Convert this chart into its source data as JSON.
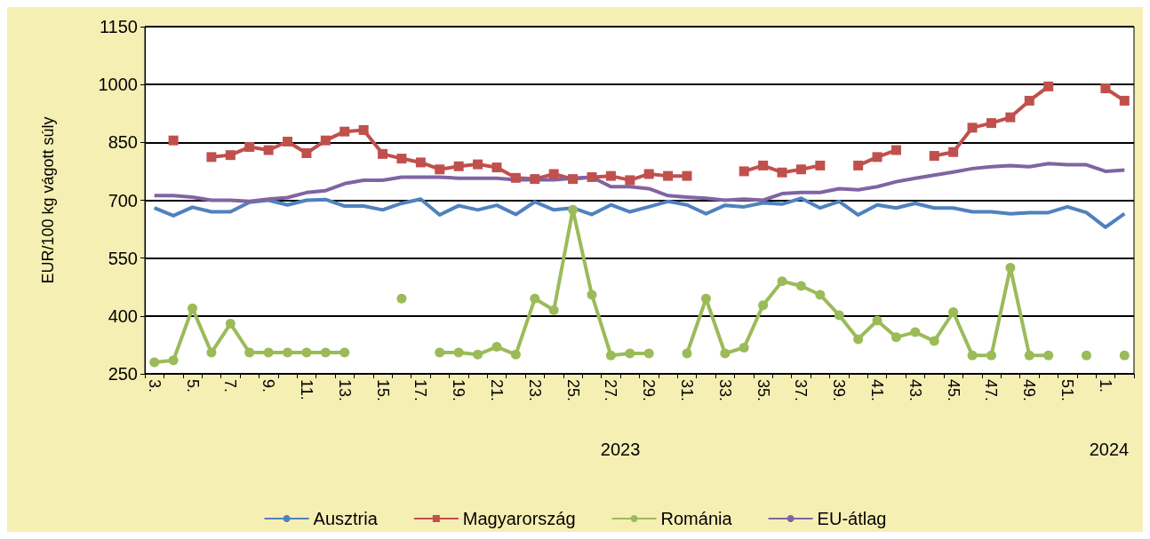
{
  "chart_data": {
    "type": "line",
    "ylabel": "EUR/100 kg vágott súly",
    "categories": [
      "3.",
      null,
      "5.",
      null,
      "7.",
      null,
      "9.",
      null,
      "11.",
      null,
      "13.",
      null,
      "15.",
      null,
      "17.",
      null,
      "19.",
      null,
      "21.",
      null,
      "23.",
      null,
      "25.",
      null,
      "27.",
      null,
      "29.",
      null,
      "31.",
      null,
      "33.",
      null,
      "35.",
      null,
      "37.",
      null,
      "39.",
      null,
      "41.",
      null,
      "43.",
      null,
      "45.",
      null,
      "47.",
      null,
      "49.",
      null,
      "51.",
      null,
      "1.",
      null
    ],
    "annotations": [
      "2023",
      "2024"
    ],
    "ylim": [
      250,
      1150
    ],
    "yticks": [
      250,
      400,
      550,
      700,
      850,
      1000,
      1150
    ],
    "grid": "y",
    "legend": "bottom",
    "series": [
      {
        "name": "Ausztria",
        "color": "#4f81bd",
        "marker": "none",
        "values": [
          680,
          660,
          682,
          670,
          670,
          695,
          700,
          688,
          700,
          702,
          685,
          685,
          675,
          692,
          703,
          662,
          686,
          675,
          687,
          663,
          696,
          675,
          680,
          663,
          688,
          670,
          683,
          697,
          688,
          665,
          687,
          683,
          693,
          690,
          705,
          680,
          697,
          662,
          688,
          680,
          692,
          680,
          680,
          670,
          670,
          665,
          668,
          668,
          683,
          668,
          630,
          665
        ]
      },
      {
        "name": "Magyarország",
        "color": "#c0504d",
        "marker": "square",
        "values": [
          null,
          855,
          null,
          812,
          817,
          838,
          830,
          852,
          822,
          855,
          878,
          882,
          820,
          808,
          798,
          780,
          788,
          793,
          785,
          758,
          755,
          768,
          755,
          760,
          763,
          752,
          768,
          763,
          763,
          null,
          null,
          775,
          790,
          772,
          780,
          790,
          null,
          790,
          812,
          830,
          null,
          815,
          825,
          888,
          900,
          915,
          958,
          995,
          null,
          null,
          990,
          958
        ]
      },
      {
        "name": "Románia",
        "color": "#9bbb59",
        "marker": "circle",
        "values": [
          280,
          285,
          420,
          305,
          380,
          305,
          305,
          305,
          305,
          305,
          305,
          null,
          null,
          445,
          null,
          305,
          305,
          300,
          320,
          300,
          445,
          415,
          675,
          455,
          298,
          303,
          303,
          null,
          303,
          445,
          303,
          318,
          428,
          490,
          478,
          455,
          402,
          340,
          388,
          345,
          358,
          335,
          410,
          298,
          298,
          525,
          298,
          298,
          null,
          298,
          null,
          298
        ]
      },
      {
        "name": "EU-átlag",
        "color": "#8064a2",
        "marker": "none",
        "values": [
          712,
          712,
          708,
          700,
          700,
          697,
          703,
          707,
          720,
          725,
          743,
          752,
          752,
          760,
          760,
          760,
          757,
          757,
          757,
          753,
          753,
          753,
          757,
          760,
          735,
          735,
          730,
          712,
          708,
          705,
          700,
          703,
          700,
          717,
          720,
          720,
          730,
          727,
          735,
          748,
          757,
          765,
          773,
          782,
          787,
          790,
          787,
          795,
          792,
          792,
          775,
          778
        ]
      }
    ]
  }
}
